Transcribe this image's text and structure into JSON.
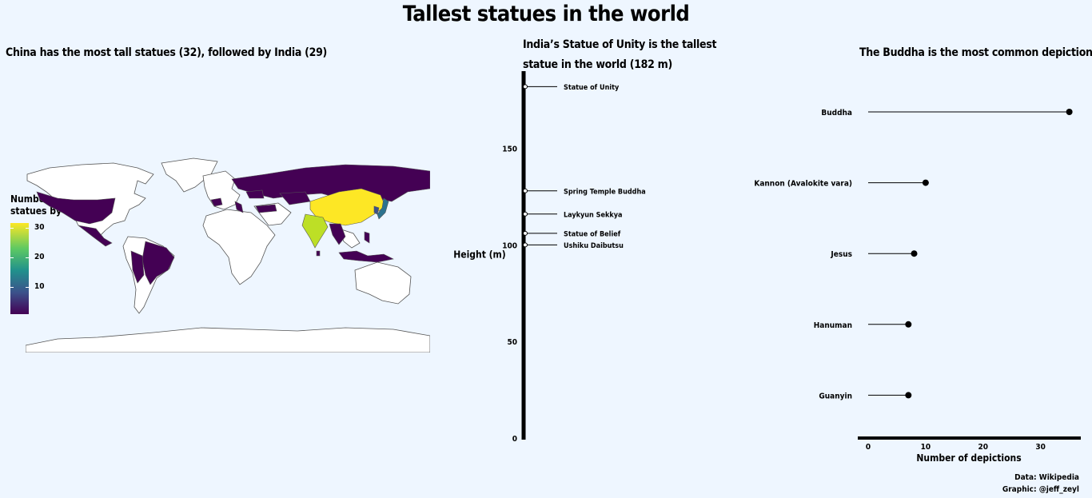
{
  "title": "Tallest statues in the world",
  "caption": {
    "line1": "Data: Wikipedia",
    "line2": "Graphic: @jeff_zeyl"
  },
  "map_panel": {
    "subtitle": "China has the most tall statues (32), followed by India (29)",
    "legend_title": "Number of tall statues by country",
    "legend_ticks": [
      "30",
      "20",
      "10"
    ],
    "colors": {
      "high": "#fde725",
      "mid": "#21918c",
      "low": "#440154",
      "india": "#bddf26",
      "japan": "#2c728e",
      "land": "#ffffff",
      "border": "#555555"
    }
  },
  "chart_data": [
    {
      "type": "scatter",
      "title": "India’s Statue of Unity is the tallest statue in the world (182 m)",
      "ylabel": "Height (m)",
      "ylim": [
        0,
        190
      ],
      "yticks": [
        0,
        50,
        100,
        150
      ],
      "points": [
        {
          "label": "Statue of Unity",
          "value": 182
        },
        {
          "label": "Spring Temple Buddha",
          "value": 128
        },
        {
          "label": "Laykyun Sekkya",
          "value": 116
        },
        {
          "label": "Statue of Belief",
          "value": 106
        },
        {
          "label": "Ushiku Daibutsu",
          "value": 100
        }
      ]
    },
    {
      "type": "bar",
      "style": "lollipop",
      "title": "The Buddha is the most common depiction",
      "xlabel": "Number of depictions",
      "xlim": [
        0,
        37
      ],
      "xticks": [
        0,
        10,
        20,
        30
      ],
      "categories": [
        "Buddha",
        "Kannon (Avalokite vara)",
        "Jesus",
        "Hanuman",
        "Guanyin"
      ],
      "values": [
        35,
        10,
        8,
        7,
        7
      ]
    }
  ]
}
